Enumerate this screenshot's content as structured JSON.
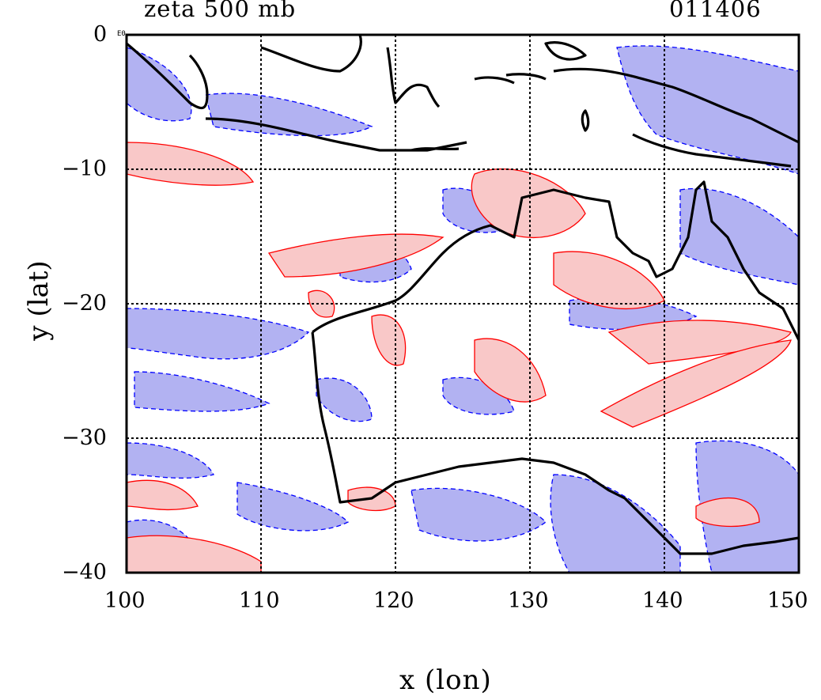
{
  "header": {
    "title_left": "zeta 500 mb",
    "title_right": "011406",
    "corner_label": "E0"
  },
  "axes": {
    "xlabel": "x (lon)",
    "ylabel": "y (lat)",
    "xlim": [
      100,
      150
    ],
    "ylim": [
      -40,
      0
    ],
    "xticks": [
      "100",
      "110",
      "120",
      "130",
      "140",
      "150"
    ],
    "yticks": [
      "0",
      "−10",
      "−20",
      "−30",
      "−40"
    ],
    "grid": true
  },
  "colors": {
    "positive_fill": "#f9c8c8",
    "positive_line": "#ff0000",
    "negative_fill": "#b2b2f2",
    "negative_line": "#0000ff",
    "coast": "#000000"
  },
  "map_data": {
    "region": "Australia / Maritime Continent",
    "field": "relative vorticity at 500 mb"
  }
}
